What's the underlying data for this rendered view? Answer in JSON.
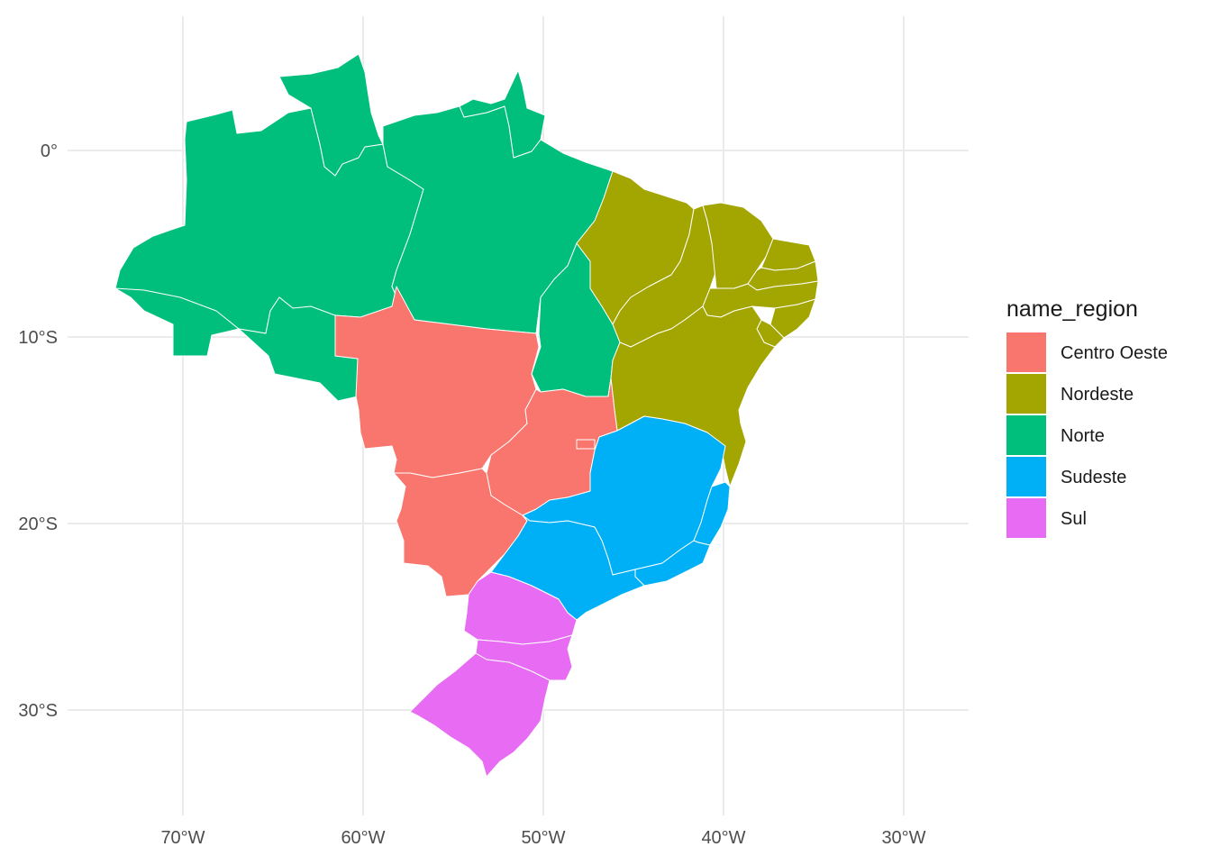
{
  "map": {
    "x_ticks": [
      "70°W",
      "60°W",
      "50°W",
      "40°W",
      "30°W"
    ],
    "y_ticks": [
      "0°",
      "10°S",
      "20°S",
      "30°S"
    ],
    "x_tick_values": [
      -70,
      -60,
      -50,
      -40,
      -30
    ],
    "y_tick_values": [
      0,
      -10,
      -20,
      -30
    ],
    "grid": true
  },
  "legend": {
    "title": "name_region",
    "position": "right",
    "items": [
      {
        "label": "Centro Oeste",
        "color": "#F8766D"
      },
      {
        "label": "Nordeste",
        "color": "#A3A500"
      },
      {
        "label": "Norte",
        "color": "#00BF7D"
      },
      {
        "label": "Sudeste",
        "color": "#00B0F6"
      },
      {
        "label": "Sul",
        "color": "#E76BF3"
      }
    ]
  },
  "regions": {
    "norte": "#00BF7D",
    "nordeste": "#A3A500",
    "centro_oeste": "#F8766D",
    "sudeste": "#00B0F6",
    "sul": "#E76BF3"
  }
}
